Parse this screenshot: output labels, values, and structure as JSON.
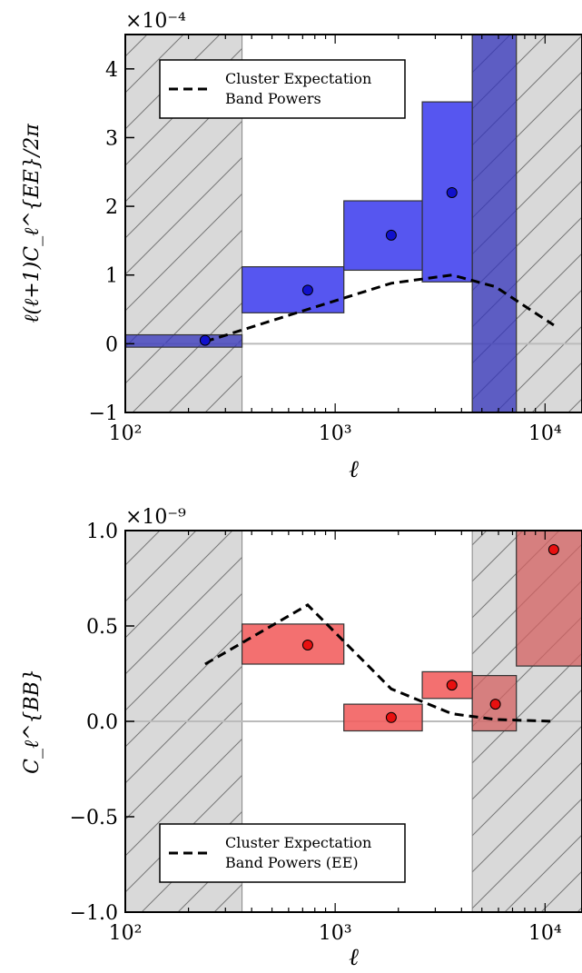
{
  "chart_data": [
    {
      "type": "bar",
      "ylabel": "ℓ(ℓ+1)C_ℓ^{EE}/2π",
      "xlabel": "ℓ",
      "multiplier": "×10⁻⁴",
      "x_scale": "log",
      "xlim": [
        100,
        15000
      ],
      "ylim": [
        -1,
        4.5
      ],
      "x_tick_labels": [
        "10²",
        "10³",
        "10⁴"
      ],
      "y_ticks": [
        -1,
        0,
        1,
        2,
        3,
        4
      ],
      "y_tick_labels": [
        "−1",
        "0",
        "1",
        "2",
        "3",
        "4"
      ],
      "excluded_regions": [
        [
          100,
          360
        ],
        [
          4500,
          15000
        ]
      ],
      "legend": {
        "placement": "top-left",
        "entries": [
          "Cluster Expectation",
          "Band Powers"
        ]
      },
      "colors": {
        "band": "#4444ee",
        "band_excluded": "#3333bb",
        "point": "#1010cc",
        "hatch_bg": "#d9d9d9"
      },
      "band_powers": [
        {
          "x": 240,
          "value": 0.05,
          "lo": -0.05,
          "hi": 0.13,
          "bin": [
            100,
            360
          ]
        },
        {
          "x": 740,
          "value": 0.78,
          "lo": 0.45,
          "hi": 1.12,
          "bin": [
            360,
            1100
          ]
        },
        {
          "x": 1850,
          "value": 1.58,
          "lo": 1.07,
          "hi": 2.08,
          "bin": [
            1100,
            2600
          ]
        },
        {
          "x": 3600,
          "value": 2.2,
          "lo": 0.9,
          "hi": 3.52,
          "bin": [
            2600,
            4500
          ]
        },
        {
          "x": 5800,
          "value": null,
          "lo": -1.0,
          "hi": 4.5,
          "bin": [
            4500,
            7300
          ]
        }
      ],
      "expectation": {
        "x": [
          240,
          740,
          1850,
          3600,
          5800,
          11000
        ],
        "y": [
          0.03,
          0.5,
          0.88,
          1.0,
          0.83,
          0.27
        ]
      }
    },
    {
      "type": "bar",
      "ylabel": "C_ℓ^{BB}",
      "xlabel": "ℓ",
      "multiplier": "×10⁻⁹",
      "x_scale": "log",
      "xlim": [
        100,
        15000
      ],
      "ylim": [
        -1.0,
        1.0
      ],
      "x_tick_labels": [
        "10²",
        "10³",
        "10⁴"
      ],
      "y_ticks": [
        -1.0,
        -0.5,
        0.0,
        0.5,
        1.0
      ],
      "y_tick_labels": [
        "−1.0",
        "−0.5",
        "0.0",
        "0.5",
        "1.0"
      ],
      "excluded_regions": [
        [
          100,
          360
        ],
        [
          4500,
          15000
        ]
      ],
      "legend": {
        "placement": "bottom-left",
        "entries": [
          "Cluster Expectation",
          "Band Powers (EE)"
        ]
      },
      "colors": {
        "band": "#f26060",
        "band_excluded": "#d46060",
        "point": "#e81010",
        "hatch_bg": "#d9d9d9"
      },
      "band_powers": [
        {
          "x": 740,
          "value": 0.4,
          "lo": 0.3,
          "hi": 0.51,
          "bin": [
            360,
            1100
          ]
        },
        {
          "x": 1850,
          "value": 0.02,
          "lo": -0.05,
          "hi": 0.09,
          "bin": [
            1100,
            2600
          ]
        },
        {
          "x": 3600,
          "value": 0.19,
          "lo": 0.12,
          "hi": 0.26,
          "bin": [
            2600,
            4500
          ]
        },
        {
          "x": 5800,
          "value": 0.09,
          "lo": -0.05,
          "hi": 0.24,
          "bin": [
            4500,
            7300
          ]
        },
        {
          "x": 11000,
          "value": 0.9,
          "lo": 0.29,
          "hi": 1.0,
          "bin": [
            7300,
            15000
          ]
        }
      ],
      "expectation": {
        "x": [
          240,
          740,
          1850,
          3600,
          5800,
          11000
        ],
        "y": [
          0.3,
          0.61,
          0.17,
          0.04,
          0.01,
          0.0
        ]
      }
    }
  ]
}
